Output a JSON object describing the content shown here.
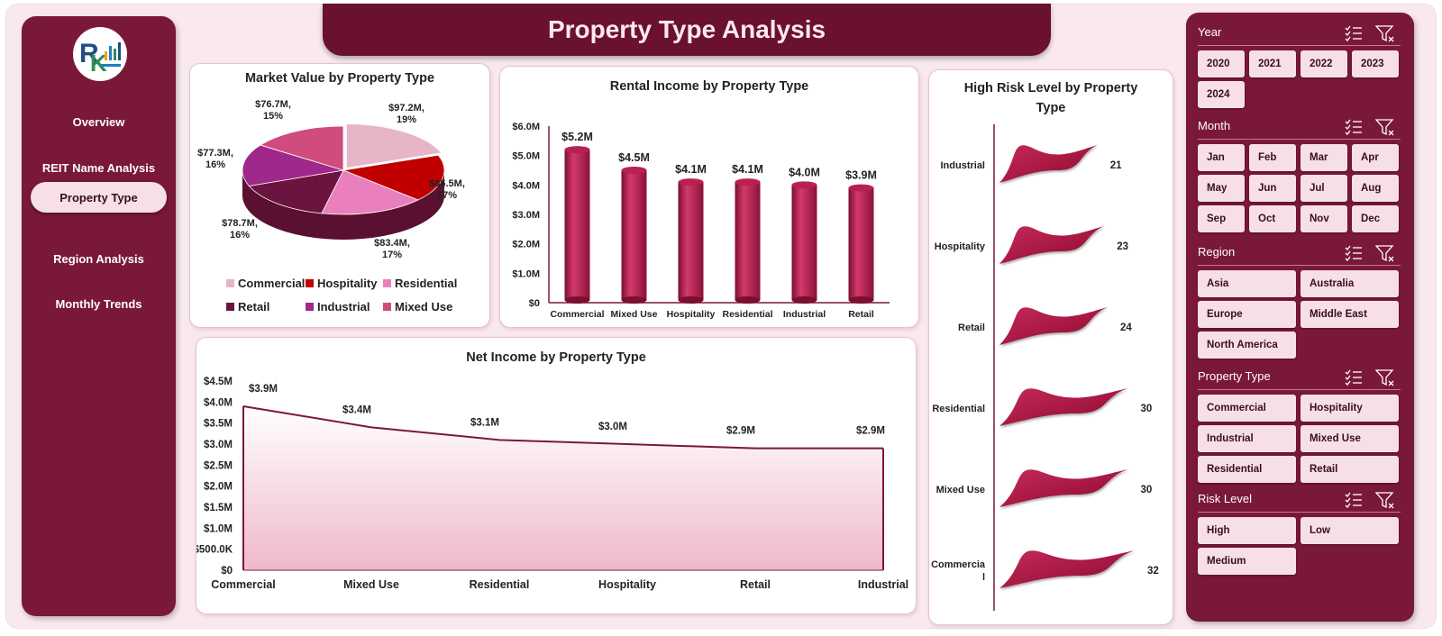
{
  "header": {
    "title": "Property Type Analysis"
  },
  "sidebar": {
    "logo_icon": "rk-logo-icon",
    "items": [
      {
        "label": "Overview",
        "active": false
      },
      {
        "label": "REIT Name Analysis",
        "active": false
      },
      {
        "label": "Property Type",
        "active": true
      },
      {
        "label": "Region Analysis",
        "active": false
      },
      {
        "label": "Monthly Trends",
        "active": false
      }
    ]
  },
  "colors": {
    "maroon": "#7a1838",
    "accent": "#a3163f",
    "chip": "#f7dfe7"
  },
  "charts": {
    "market_value": {
      "title": "Market Value by Property Type",
      "labels": [
        "$97.2M,",
        "19%",
        "$86.5M,",
        "17%",
        "$83.4M,",
        "17%",
        "$78.7M,",
        "16%",
        "$77.3M,",
        "16%",
        "$76.7M,",
        "15%"
      ],
      "legend": [
        "Commercial",
        "Hospitality",
        "Residential",
        "Retail",
        "Industrial",
        "Mixed Use"
      ]
    },
    "rental_income": {
      "title": "Rental Income by Property Type",
      "yticks": [
        "$6.0M",
        "$5.0M",
        "$4.0M",
        "$3.0M",
        "$2.0M",
        "$1.0M",
        "$0"
      ],
      "data_labels": [
        "$5.2M",
        "$4.5M",
        "$4.1M",
        "$4.1M",
        "$4.0M",
        "$3.9M"
      ]
    },
    "net_income": {
      "title": "Net Income by Property Type",
      "yticks": [
        "$4.5M",
        "$4.0M",
        "$3.5M",
        "$3.0M",
        "$2.5M",
        "$2.0M",
        "$1.5M",
        "$1.0M",
        "$500.0K",
        "$0"
      ],
      "data_labels": [
        "$3.9M",
        "$3.4M",
        "$3.1M",
        "$3.0M",
        "$2.9M",
        "$2.9M"
      ]
    },
    "high_risk": {
      "title_line1": "High Risk Level by Property",
      "title_line2": "Type",
      "categories": [
        "Industrial",
        "Hospitality",
        "Retail",
        "Residential",
        "Mixed Use",
        "Commercia\nl"
      ],
      "values": [
        "21",
        "23",
        "24",
        "30",
        "30",
        "32"
      ]
    }
  },
  "chart_data": [
    {
      "type": "pie",
      "title": "Market Value by Property Type",
      "categories": [
        "Commercial",
        "Hospitality",
        "Residential",
        "Retail",
        "Industrial",
        "Mixed Use"
      ],
      "values": [
        97.2,
        86.5,
        83.4,
        78.7,
        77.3,
        76.7
      ],
      "percent": [
        19,
        17,
        17,
        16,
        16,
        15
      ],
      "unit": "$M",
      "colors": [
        "#e8b4c8",
        "#c00000",
        "#ea7fbd",
        "#6c1440",
        "#a0288a",
        "#d04c7e"
      ],
      "legend_position": "bottom"
    },
    {
      "type": "bar",
      "title": "Rental Income by Property Type",
      "categories": [
        "Commercial",
        "Mixed Use",
        "Hospitality",
        "Residential",
        "Industrial",
        "Retail"
      ],
      "values": [
        5.2,
        4.5,
        4.1,
        4.1,
        4.0,
        3.9
      ],
      "unit": "$M",
      "ylim": [
        0,
        6
      ],
      "yticks": [
        "$6.0M",
        "$5.0M",
        "$4.0M",
        "$3.0M",
        "$2.0M",
        "$1.0M",
        "$0"
      ]
    },
    {
      "type": "area",
      "title": "Net Income by Property Type",
      "categories": [
        "Commercial",
        "Mixed Use",
        "Residential",
        "Hospitality",
        "Retail",
        "Industrial"
      ],
      "values": [
        3.9,
        3.4,
        3.1,
        3.0,
        2.9,
        2.9
      ],
      "unit": "$M",
      "ylim": [
        0,
        4.5
      ],
      "yticks": [
        "$4.5M",
        "$4.0M",
        "$3.5M",
        "$3.0M",
        "$2.5M",
        "$2.0M",
        "$1.5M",
        "$1.0M",
        "$500.0K",
        "$0"
      ]
    },
    {
      "type": "bar",
      "orientation": "horizontal",
      "title": "High Risk Level by Property Type",
      "categories": [
        "Industrial",
        "Hospitality",
        "Retail",
        "Residential",
        "Mixed Use",
        "Commercial"
      ],
      "values": [
        21,
        23,
        24,
        30,
        30,
        32
      ]
    }
  ],
  "slicers": {
    "year": {
      "title": "Year",
      "items": [
        "2020",
        "2021",
        "2022",
        "2023",
        "2024"
      ]
    },
    "month": {
      "title": "Month",
      "items": [
        "Jan",
        "Feb",
        "Mar",
        "Apr",
        "May",
        "Jun",
        "Jul",
        "Aug",
        "Sep",
        "Oct",
        "Nov",
        "Dec"
      ]
    },
    "region": {
      "title": "Region",
      "items": [
        "Asia",
        "Australia",
        "Europe",
        "Middle East",
        "North America"
      ]
    },
    "property_type": {
      "title": "Property Type",
      "items": [
        "Commercial",
        "Hospitality",
        "Industrial",
        "Mixed Use",
        "Residential",
        "Retail"
      ]
    },
    "risk_level": {
      "title": "Risk Level",
      "items": [
        "High",
        "Low",
        "Medium"
      ]
    }
  }
}
